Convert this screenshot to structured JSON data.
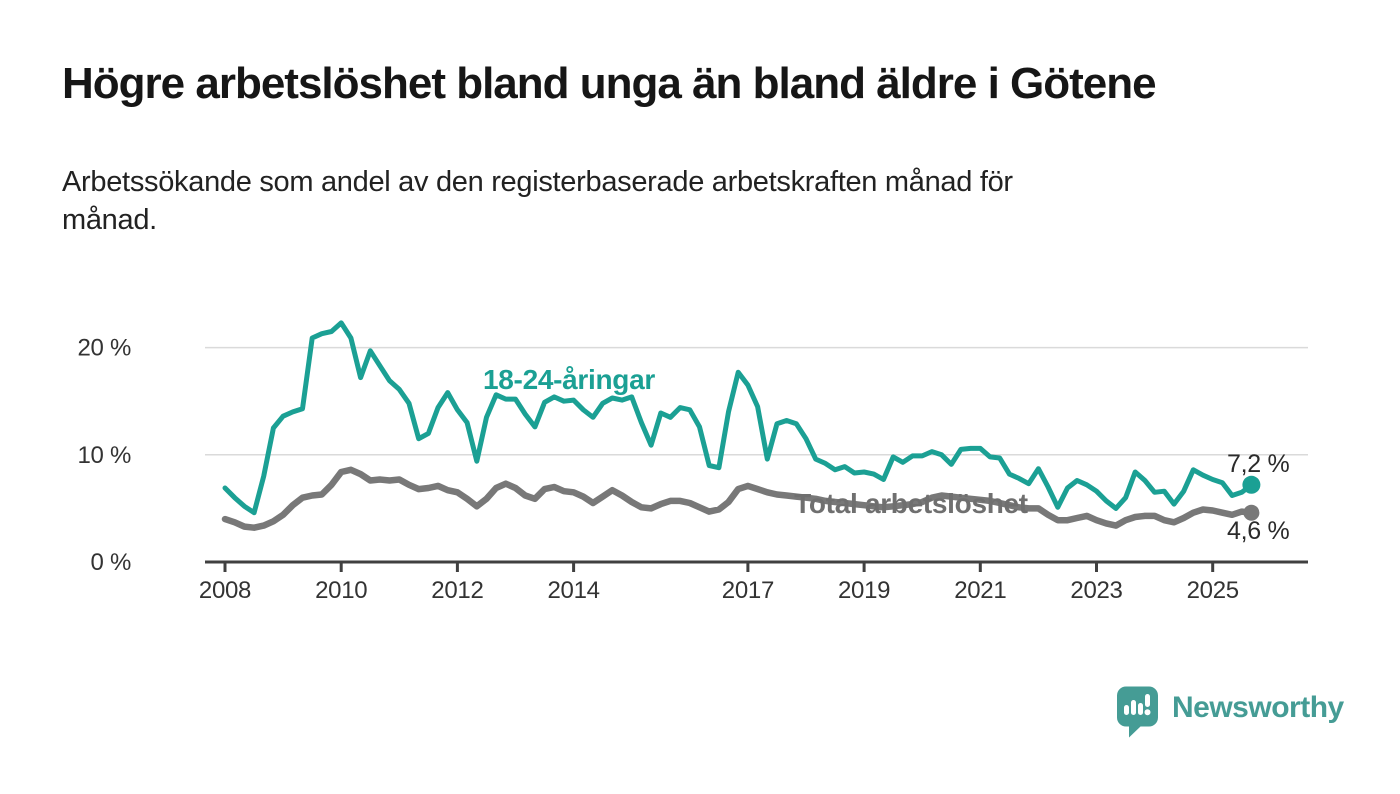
{
  "header": {
    "title": "Högre arbetslöshet bland unga än bland äldre i Götene",
    "subtitle_lines": [
      "Arbetssökande som andel av den registerbaserade arbetskraften månad för",
      "månad."
    ]
  },
  "chart_data": {
    "type": "line",
    "title": "Högre arbetslöshet bland unga än bland äldre i Götene",
    "subtitle": "Arbetssökande som andel av den registerbaserade arbetskraften månad för månad.",
    "xlabel": "",
    "ylabel": "",
    "xlim": [
      2008,
      2025.67
    ],
    "ylim": [
      0,
      22.5
    ],
    "grid": "horizontal-only",
    "gridline_values": [
      10,
      20
    ],
    "legend_position": "inline-labels",
    "x_start": 2008.0,
    "x_step_years": 0.1666667,
    "x_tick_years": [
      2008,
      2010,
      2012,
      2014,
      2017,
      2019,
      2021,
      2023,
      2025
    ],
    "x_tick_labels": [
      "2008",
      "2010",
      "2012",
      "2014",
      "2017",
      "2019",
      "2021",
      "2023",
      "2025"
    ],
    "y_ticks": [
      {
        "value": 0,
        "label": "0 %"
      },
      {
        "value": 10,
        "label": "10 %"
      },
      {
        "value": 20,
        "label": "20 %"
      }
    ],
    "series": [
      {
        "name": "18-24-åringar",
        "color": "#1BA094",
        "end_label": "7,2 %",
        "end_value": 7.2,
        "values": [
          6.9,
          6.0,
          5.2,
          4.6,
          8.0,
          12.5,
          13.6,
          14.0,
          14.3,
          20.9,
          21.3,
          21.5,
          22.3,
          20.9,
          17.2,
          19.7,
          18.3,
          16.9,
          16.1,
          14.8,
          11.5,
          12.0,
          14.4,
          15.8,
          14.2,
          13.0,
          9.4,
          13.5,
          15.6,
          15.2,
          15.2,
          13.8,
          12.6,
          14.9,
          15.4,
          15.0,
          15.1,
          14.2,
          13.5,
          14.8,
          15.3,
          15.1,
          15.4,
          13.0,
          10.9,
          13.9,
          13.5,
          14.4,
          14.2,
          12.6,
          9.0,
          8.8,
          14.0,
          17.7,
          16.5,
          14.5,
          9.6,
          12.9,
          13.2,
          12.9,
          11.5,
          9.6,
          9.2,
          8.6,
          8.9,
          8.3,
          8.4,
          8.2,
          7.7,
          9.8,
          9.3,
          9.9,
          9.9,
          10.3,
          10.0,
          9.1,
          10.5,
          10.6,
          10.6,
          9.8,
          9.7,
          8.2,
          7.8,
          7.3,
          8.7,
          7.0,
          5.1,
          6.9,
          7.6,
          7.2,
          6.6,
          5.7,
          5.0,
          6.0,
          8.4,
          7.6,
          6.5,
          6.6,
          5.4,
          6.6,
          8.6,
          8.1,
          7.7,
          7.4,
          6.2,
          6.5,
          7.2
        ]
      },
      {
        "name": "Total arbetslöshet",
        "color": "#787878",
        "label_color": "#6F6F6F",
        "end_label": "4,6 %",
        "end_value": 4.6,
        "values": [
          4.0,
          3.7,
          3.3,
          3.2,
          3.4,
          3.8,
          4.4,
          5.3,
          6.0,
          6.2,
          6.3,
          7.2,
          8.4,
          8.6,
          8.2,
          7.6,
          7.7,
          7.6,
          7.7,
          7.2,
          6.8,
          6.9,
          7.1,
          6.7,
          6.5,
          5.9,
          5.2,
          5.9,
          6.9,
          7.3,
          6.9,
          6.2,
          5.9,
          6.8,
          7.0,
          6.6,
          6.5,
          6.1,
          5.5,
          6.1,
          6.7,
          6.2,
          5.6,
          5.1,
          5.0,
          5.4,
          5.7,
          5.7,
          5.5,
          5.1,
          4.7,
          4.9,
          5.6,
          6.8,
          7.1,
          6.8,
          6.5,
          6.3,
          6.2,
          6.1,
          6.0,
          5.9,
          5.7,
          5.6,
          5.5,
          5.4,
          5.3,
          5.2,
          5.1,
          5.2,
          5.3,
          5.4,
          5.6,
          6.0,
          6.2,
          6.1,
          6.0,
          5.9,
          5.8,
          5.7,
          5.5,
          5.3,
          5.1,
          5.0,
          5.0,
          4.4,
          3.9,
          3.9,
          4.1,
          4.3,
          3.9,
          3.6,
          3.4,
          3.9,
          4.2,
          4.3,
          4.3,
          3.9,
          3.7,
          4.1,
          4.6,
          4.9,
          4.8,
          4.6,
          4.4,
          4.7,
          4.6
        ]
      }
    ],
    "colors": {
      "axis": "#404040",
      "gridline": "#DADADA",
      "tick_text": "#333333",
      "end_label_text": "#2B2B2B"
    }
  },
  "footer": {
    "brand": "Newsworthy",
    "brand_color": "#459C95",
    "logo_icon": "newsworthy-speech-bubble-bar-chart-icon"
  }
}
